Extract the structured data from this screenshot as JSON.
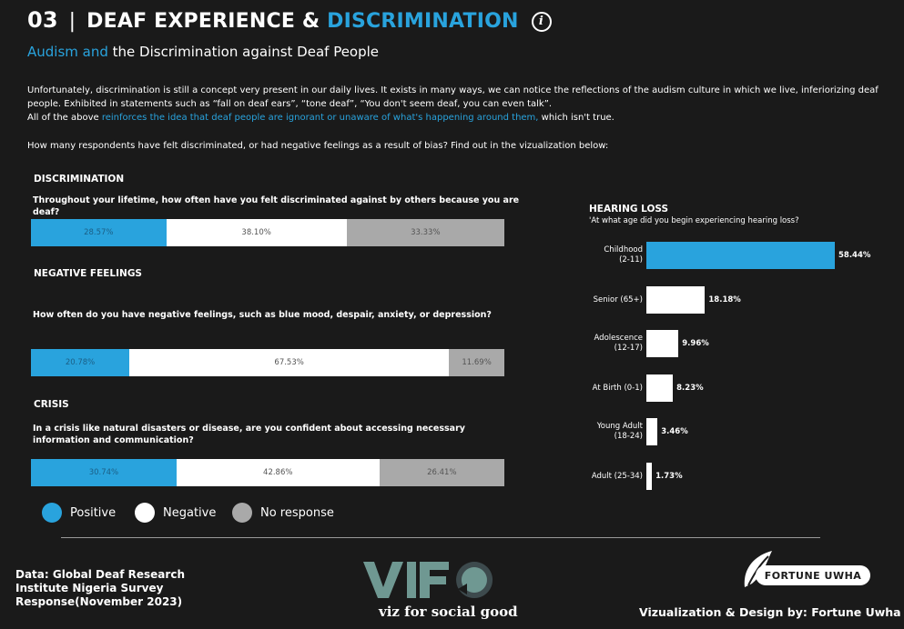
{
  "header": {
    "number": "03",
    "separator": "|",
    "title_part1": "DEAF EXPERIENCE &",
    "title_part2": "DISCRIMINATION",
    "info_icon_glyph": "i",
    "subtitle_part1": "Audism and",
    "subtitle_part2": "the Discrimination against Deaf People"
  },
  "intro": {
    "para1": "Unfortunately, discrimination is still a concept very present in our daily lives. It exists in many ways, we can notice the reflections of the audism culture in which we live, inferiorizing deaf people. Exhibited in statements such as “fall on deaf ears”, “tone deaf”, “You don't seem deaf, you can even talk”.",
    "para2_part1": "All of the above",
    "para2_highlight": "reinforces the idea that deaf people are ignorant or unaware of what's happening around them,",
    "para2_part2": "which isn't true.",
    "para3": "How many respondents have felt discriminated, or had negative feelings as a result of bias? Find out in the vizualization below:"
  },
  "colors": {
    "positive": "#29a3dd",
    "negative": "#ffffff",
    "no_response": "#a9a9a9",
    "background": "#1a1a1a"
  },
  "legend": {
    "positive": "Positive",
    "negative": "Negative",
    "no_response": "No response"
  },
  "footer": {
    "data_source": "Data: Global Deaf Research Institute Nigeria Survey Response(November  2023)",
    "credit": "Vizualization & Design by: Fortune Uwha",
    "vfsg_tagline": "viz for social good",
    "brand": "FORTUNE UWHA"
  },
  "chart_data": [
    {
      "type": "bar",
      "orientation": "horizontal-stacked",
      "title": "DISCRIMINATION",
      "question": "Throughout your lifetime, how often have you felt discriminated against by others because you are deaf?",
      "series": [
        {
          "name": "Positive",
          "value": 28.57,
          "label": "28.57%"
        },
        {
          "name": "Negative",
          "value": 38.1,
          "label": "38.10%"
        },
        {
          "name": "No response",
          "value": 33.33,
          "label": "33.33%"
        }
      ]
    },
    {
      "type": "bar",
      "orientation": "horizontal-stacked",
      "title": "NEGATIVE FEELINGS",
      "question": "How often do you have negative feelings, such as blue mood, despair, anxiety, or depression?",
      "series": [
        {
          "name": "Positive",
          "value": 20.78,
          "label": "20.78%"
        },
        {
          "name": "Negative",
          "value": 67.53,
          "label": "67.53%"
        },
        {
          "name": "No response",
          "value": 11.69,
          "label": "11.69%"
        }
      ]
    },
    {
      "type": "bar",
      "orientation": "horizontal-stacked",
      "title": "CRISIS",
      "question": "In a crisis like natural disasters or disease, are you confident about accessing necessary information and communication?",
      "series": [
        {
          "name": "Positive",
          "value": 30.74,
          "label": "30.74%"
        },
        {
          "name": "Negative",
          "value": 42.86,
          "label": "42.86%"
        },
        {
          "name": "No response",
          "value": 26.41,
          "label": "26.41%"
        }
      ]
    },
    {
      "type": "bar",
      "orientation": "horizontal",
      "title": "HEARING LOSS",
      "question": "'At what age did you begin experiencing hearing loss?",
      "categories": [
        {
          "line1": "Childhood",
          "line2": "(2-11)"
        },
        {
          "line1": "Senior (65+)",
          "line2": ""
        },
        {
          "line1": "Adolescence",
          "line2": "(12-17)"
        },
        {
          "line1": "At Birth (0-1)",
          "line2": ""
        },
        {
          "line1": "Young Adult",
          "line2": "(18-24)"
        },
        {
          "line1": "Adult (25-34)",
          "line2": ""
        }
      ],
      "values": [
        58.44,
        18.18,
        9.96,
        8.23,
        3.46,
        1.73
      ],
      "labels": [
        "58.44%",
        "18.18%",
        "9.96%",
        "8.23%",
        "3.46%",
        "1.73%"
      ]
    }
  ]
}
